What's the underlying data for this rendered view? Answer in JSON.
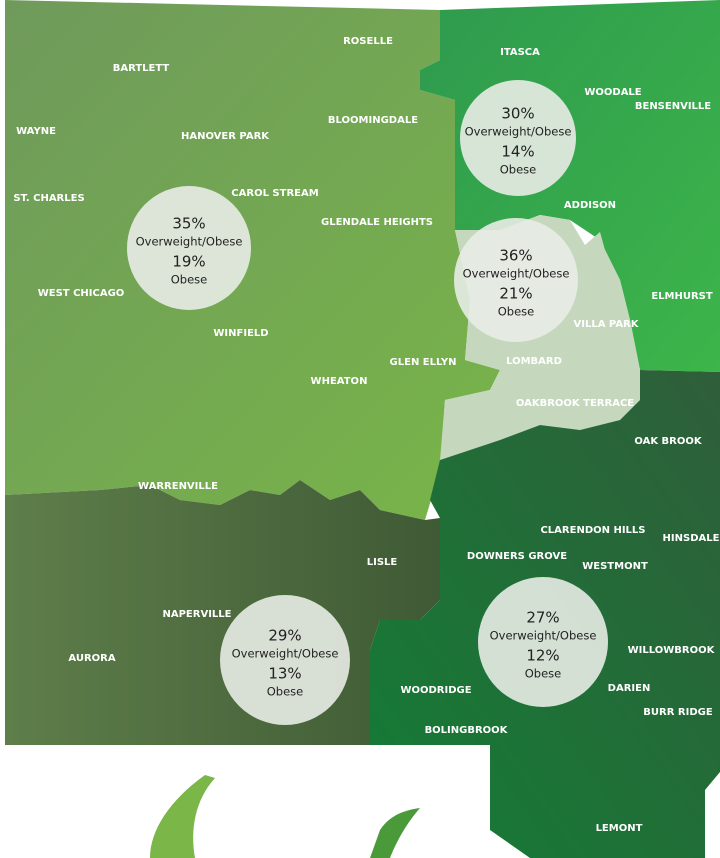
{
  "regions": [
    {
      "overweight_obese": "35%",
      "overweight_label": "Overweight/Obese",
      "obese": "19%",
      "obese_label": "Obese"
    },
    {
      "overweight_obese": "30%",
      "overweight_label": "Overweight/Obese",
      "obese": "14%",
      "obese_label": "Obese"
    },
    {
      "overweight_obese": "36%",
      "overweight_label": "Overweight/Obese",
      "obese": "21%",
      "obese_label": "Obese"
    },
    {
      "overweight_obese": "29%",
      "overweight_label": "Overweight/Obese",
      "obese": "13%",
      "obese_label": "Obese"
    },
    {
      "overweight_obese": "27%",
      "overweight_label": "Overweight/Obese",
      "obese": "12%",
      "obese_label": "Obese"
    }
  ],
  "towns": [
    "ROSELLE",
    "ITASCA",
    "BARTLETT",
    "WOODALE",
    "BENSENVILLE",
    "BLOOMINGDALE",
    "WAYNE",
    "HANOVER PARK",
    "CAROL STREAM",
    "ST. CHARLES",
    "ADDISON",
    "GLENDALE HEIGHTS",
    "WEST CHICAGO",
    "ELMHURST",
    "VILLA PARK",
    "WINFIELD",
    "GLEN ELLYN",
    "LOMBARD",
    "WHEATON",
    "OAKBROOK TERRACE",
    "OAK BROOK",
    "WARRENVILLE",
    "CLARENDON HILLS",
    "HINSDALE",
    "DOWNERS GROVE",
    "WESTMONT",
    "LISLE",
    "NAPERVILLE",
    "AURORA",
    "WILLOWBROOK",
    "DARIEN",
    "WOODRIDGE",
    "BURR RIDGE",
    "BOLINGBROOK",
    "LEMONT"
  ]
}
